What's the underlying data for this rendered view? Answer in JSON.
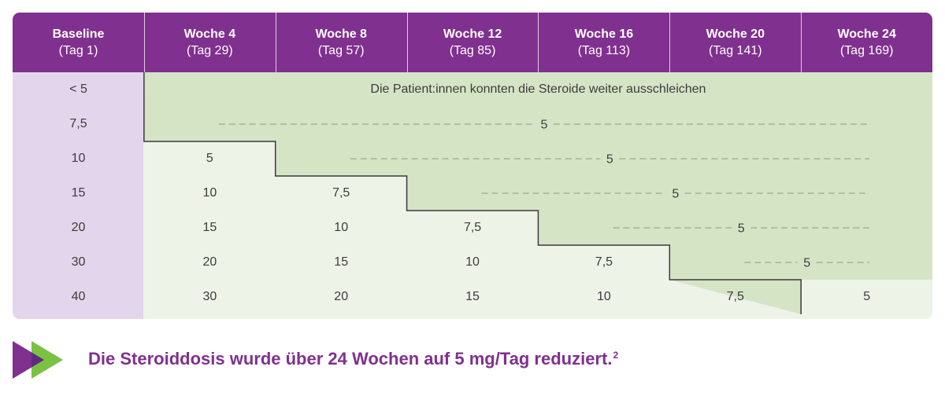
{
  "table": {
    "headers": [
      {
        "title": "Baseline",
        "sub": "(Tag 1)"
      },
      {
        "title": "Woche 4",
        "sub": "(Tag 29)"
      },
      {
        "title": "Woche 8",
        "sub": "(Tag 57)"
      },
      {
        "title": "Woche 12",
        "sub": "(Tag 85)"
      },
      {
        "title": "Woche 16",
        "sub": "(Tag 113)"
      },
      {
        "title": "Woche 20",
        "sub": "(Tag 141)"
      },
      {
        "title": "Woche 24",
        "sub": "(Tag 169)"
      }
    ],
    "rows": [
      [
        "< 5"
      ],
      [
        "7,5"
      ],
      [
        "10",
        "5"
      ],
      [
        "15",
        "10",
        "7,5"
      ],
      [
        "20",
        "15",
        "10",
        "7,5"
      ],
      [
        "30",
        "20",
        "15",
        "10",
        "7,5"
      ],
      [
        "40",
        "30",
        "20",
        "15",
        "10",
        "7,5",
        "5"
      ]
    ],
    "taper_note": "Die Patient:innen konnten die Steroide weiter ausschleichen",
    "maintenance_rows": [
      {
        "row": 1,
        "from_col": 1,
        "label": "5"
      },
      {
        "row": 2,
        "from_col": 2,
        "label": "5"
      },
      {
        "row": 3,
        "from_col": 3,
        "label": "5"
      },
      {
        "row": 4,
        "from_col": 4,
        "label": "5"
      },
      {
        "row": 5,
        "from_col": 5,
        "label": "5"
      }
    ]
  },
  "colors": {
    "header": "#80308e",
    "baseline_column": "#e3d5eb",
    "taper_area": "#eef3e8",
    "maintenance_area": "#d6e4c6",
    "arrow_dark": "#80308e",
    "arrow_green": "#7bc142"
  },
  "footer": {
    "icon": "fast-forward-arrows-icon",
    "text": "Die Steroiddosis wurde über 24 Wochen auf 5 mg/Tag reduziert.",
    "footnote": "2"
  }
}
